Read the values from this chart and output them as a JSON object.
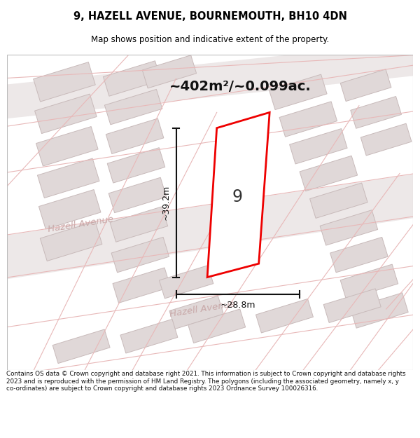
{
  "title_line1": "9, HAZELL AVENUE, BOURNEMOUTH, BH10 4DN",
  "title_line2": "Map shows position and indicative extent of the property.",
  "area_text": "~402m²/~0.099ac.",
  "dim_height": "~39.2m",
  "dim_width": "~28.8m",
  "property_label": "9",
  "road_label_1": "Hazell Avenue",
  "road_label_2": "Hazell Avenue",
  "footer_text": "Contains OS data © Crown copyright and database right 2021. This information is subject to Crown copyright and database rights 2023 and is reproduced with the permission of HM Land Registry. The polygons (including the associated geometry, namely x, y co-ordinates) are subject to Crown copyright and database rights 2023 Ordnance Survey 100026316.",
  "map_bg": "#f7f3f3",
  "road_fill": "#ede8e8",
  "road_line_color": "#e8b8b8",
  "building_fill": "#e0d8d8",
  "building_edge": "#c8baba",
  "plot_line_color": "#ee0000",
  "dim_line_color": "#111111",
  "road_text_color": "#c8a8a8",
  "title_color": "#000000",
  "footer_color": "#111111",
  "white": "#ffffff"
}
